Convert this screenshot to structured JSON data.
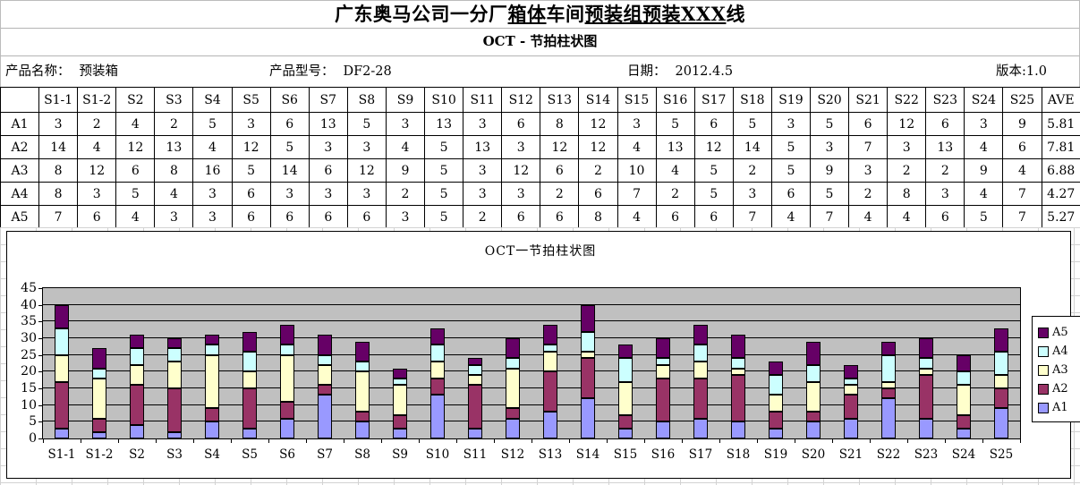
{
  "header": {
    "title_segments": [
      {
        "text": "广东奥马公司一分厂",
        "underline": false
      },
      {
        "text": "箱体",
        "underline": true
      },
      {
        "text": "车间",
        "underline": false
      },
      {
        "text": "预装组",
        "underline": true
      },
      {
        "text": "预装XXX",
        "underline": true
      },
      {
        "text": "线",
        "underline": false
      }
    ],
    "subtitle": "OCT - 节拍柱状图",
    "info": {
      "product_name_label": "产品名称：",
      "product_name_value": "预装箱",
      "product_model_label": "产品型号：",
      "product_model_value": "DF2-28",
      "date_label": "日期：",
      "date_value": "2012.4.5",
      "version_label": "版本:",
      "version_value": "1.0"
    }
  },
  "table": {
    "columns": [
      "",
      "S1-1",
      "S1-2",
      "S2",
      "S3",
      "S4",
      "S5",
      "S6",
      "S7",
      "S8",
      "S9",
      "S10",
      "S11",
      "S12",
      "S13",
      "S14",
      "S15",
      "S16",
      "S17",
      "S18",
      "S19",
      "S20",
      "S21",
      "S22",
      "S23",
      "S24",
      "S25",
      "AVE"
    ],
    "rows": [
      {
        "label": "A1",
        "values": [
          3,
          2,
          4,
          2,
          5,
          3,
          6,
          13,
          5,
          3,
          13,
          3,
          6,
          8,
          12,
          3,
          5,
          6,
          5,
          3,
          5,
          6,
          12,
          6,
          3,
          9
        ],
        "ave": "5.81"
      },
      {
        "label": "A2",
        "values": [
          14,
          4,
          12,
          13,
          4,
          12,
          5,
          3,
          3,
          4,
          5,
          13,
          3,
          12,
          12,
          4,
          13,
          12,
          14,
          5,
          3,
          7,
          3,
          13,
          4,
          6
        ],
        "ave": "7.81"
      },
      {
        "label": "A3",
        "values": [
          8,
          12,
          6,
          8,
          16,
          5,
          14,
          6,
          12,
          9,
          5,
          3,
          12,
          6,
          2,
          10,
          4,
          5,
          2,
          5,
          9,
          3,
          2,
          2,
          9,
          4
        ],
        "ave": "6.88"
      },
      {
        "label": "A4",
        "values": [
          8,
          3,
          5,
          4,
          3,
          6,
          3,
          3,
          3,
          2,
          5,
          3,
          3,
          2,
          6,
          7,
          2,
          5,
          3,
          6,
          5,
          2,
          8,
          3,
          4,
          7
        ],
        "ave": "4.27"
      },
      {
        "label": "A5",
        "values": [
          7,
          6,
          4,
          3,
          3,
          6,
          6,
          6,
          6,
          3,
          5,
          2,
          6,
          6,
          8,
          4,
          6,
          6,
          7,
          4,
          7,
          4,
          4,
          6,
          5,
          7
        ],
        "ave": "5.27"
      }
    ]
  },
  "chart_data": {
    "type": "bar",
    "stacked": true,
    "title": "OCT一节拍柱状图",
    "categories": [
      "S1-1",
      "S1-2",
      "S2",
      "S3",
      "S4",
      "S5",
      "S6",
      "S7",
      "S8",
      "S9",
      "S10",
      "S11",
      "S12",
      "S13",
      "S14",
      "S15",
      "S16",
      "S17",
      "S18",
      "S19",
      "S20",
      "S21",
      "S22",
      "S23",
      "S24",
      "S25"
    ],
    "series": [
      {
        "name": "A1",
        "color": "#9999FF",
        "values": [
          3,
          2,
          4,
          2,
          5,
          3,
          6,
          13,
          5,
          3,
          13,
          3,
          6,
          8,
          12,
          3,
          5,
          6,
          5,
          3,
          5,
          6,
          12,
          6,
          3,
          9
        ]
      },
      {
        "name": "A2",
        "color": "#993366",
        "values": [
          14,
          4,
          12,
          13,
          4,
          12,
          5,
          3,
          3,
          4,
          5,
          13,
          3,
          12,
          12,
          4,
          13,
          12,
          14,
          5,
          3,
          7,
          3,
          13,
          4,
          6
        ]
      },
      {
        "name": "A3",
        "color": "#FFFFCC",
        "values": [
          8,
          12,
          6,
          8,
          16,
          5,
          14,
          6,
          12,
          9,
          5,
          3,
          12,
          6,
          2,
          10,
          4,
          5,
          2,
          5,
          9,
          3,
          2,
          2,
          9,
          4
        ]
      },
      {
        "name": "A4",
        "color": "#CCFFFF",
        "values": [
          8,
          3,
          5,
          4,
          3,
          6,
          3,
          3,
          3,
          2,
          5,
          3,
          3,
          2,
          6,
          7,
          2,
          5,
          3,
          6,
          5,
          2,
          8,
          3,
          4,
          7
        ]
      },
      {
        "name": "A5",
        "color": "#660066",
        "values": [
          7,
          6,
          4,
          3,
          3,
          6,
          6,
          6,
          6,
          3,
          5,
          2,
          6,
          6,
          8,
          4,
          6,
          6,
          7,
          4,
          7,
          4,
          4,
          6,
          5,
          7
        ]
      }
    ],
    "xlabel": "",
    "ylabel": "",
    "ylim": [
      0,
      45
    ],
    "ytick_step": 5,
    "grid": true,
    "plot_bg": "#C0C0C0",
    "legend_position": "right",
    "legend_order": [
      "A5",
      "A4",
      "A3",
      "A2",
      "A1"
    ]
  }
}
